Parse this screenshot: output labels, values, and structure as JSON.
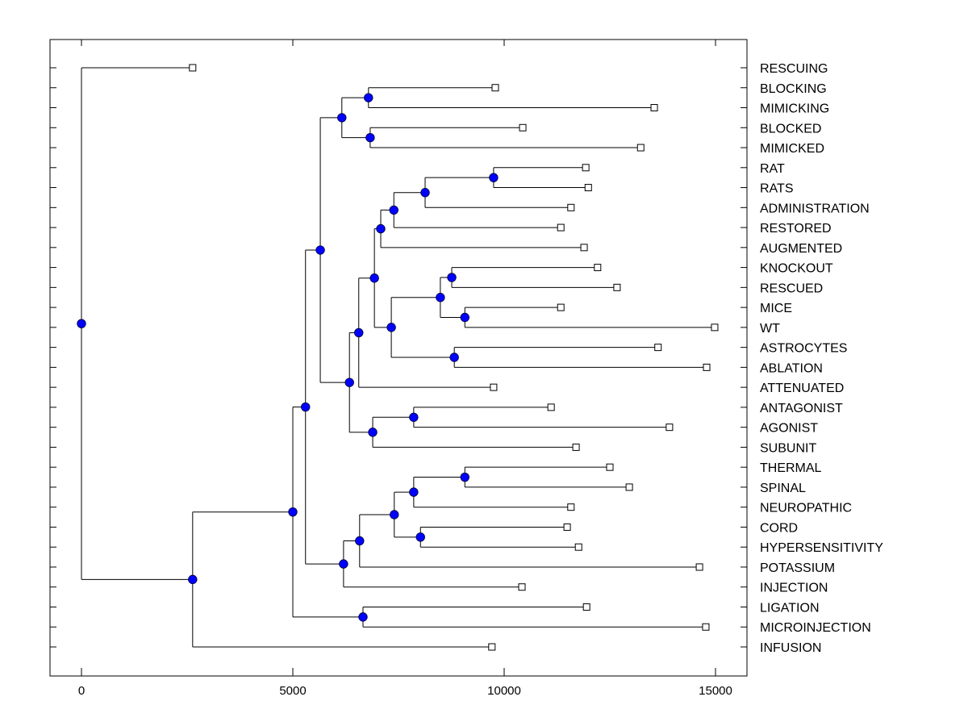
{
  "chart_data": {
    "type": "dendrogram",
    "title": "",
    "xlabel": "",
    "ylabel": "",
    "xlim": [
      -1500,
      15800
    ],
    "xticks": [
      0,
      5000,
      10000,
      15000
    ],
    "xtick_labels": [
      "0",
      "5000",
      "10000",
      "15000"
    ],
    "grid": false,
    "orientation": "left-to-right",
    "leaf_marker": "open-square",
    "node_marker": "filled-circle",
    "node_color": "#0000ff",
    "line_color": "#000000",
    "leaves": [
      {
        "label": "RESCUING",
        "x": 2630
      },
      {
        "label": "BLOCKING",
        "x": 9790
      },
      {
        "label": "MIMICKING",
        "x": 13550
      },
      {
        "label": "BLOCKED",
        "x": 10440
      },
      {
        "label": "MIMICKED",
        "x": 13230
      },
      {
        "label": "RAT",
        "x": 11930
      },
      {
        "label": "RATS",
        "x": 11990
      },
      {
        "label": "ADMINISTRATION",
        "x": 11580
      },
      {
        "label": "RESTORED",
        "x": 11340
      },
      {
        "label": "AUGMENTED",
        "x": 11890
      },
      {
        "label": "KNOCKOUT",
        "x": 12210
      },
      {
        "label": "RESCUED",
        "x": 12670
      },
      {
        "label": "MICE",
        "x": 11340
      },
      {
        "label": "WT",
        "x": 14980
      },
      {
        "label": "ASTROCYTES",
        "x": 13640
      },
      {
        "label": "ABLATION",
        "x": 14790
      },
      {
        "label": "ATTENUATED",
        "x": 9750
      },
      {
        "label": "ANTAGONIST",
        "x": 11110
      },
      {
        "label": "AGONIST",
        "x": 13910
      },
      {
        "label": "SUBUNIT",
        "x": 11700
      },
      {
        "label": "THERMAL",
        "x": 12500
      },
      {
        "label": "SPINAL",
        "x": 12960
      },
      {
        "label": "NEUROPATHIC",
        "x": 11580
      },
      {
        "label": "CORD",
        "x": 11490
      },
      {
        "label": "HYPERSENSITIVITY",
        "x": 11760
      },
      {
        "label": "POTASSIUM",
        "x": 14620
      },
      {
        "label": "INJECTION",
        "x": 10420
      },
      {
        "label": "LIGATION",
        "x": 11950
      },
      {
        "label": "MICROINJECTION",
        "x": 14770
      },
      {
        "label": "INFUSION",
        "x": 9710
      }
    ],
    "tree": {
      "x": 0,
      "children": [
        {
          "leaf": 0
        },
        {
          "x": 2630,
          "children": [
            {
              "x": 5000,
              "children": [
                {
                  "x": 5300,
                  "children": [
                    {
                      "x": 5650,
                      "children": [
                        {
                          "x": 6160,
                          "children": [
                            {
                              "x": 6790,
                              "children": [
                                {
                                  "leaf": 1
                                },
                                {
                                  "leaf": 2
                                }
                              ]
                            },
                            {
                              "x": 6830,
                              "children": [
                                {
                                  "leaf": 3
                                },
                                {
                                  "leaf": 4
                                }
                              ]
                            }
                          ]
                        },
                        {
                          "x": 6340,
                          "children": [
                            {
                              "x": 6560,
                              "children": [
                                {
                                  "x": 6930,
                                  "children": [
                                    {
                                      "x": 7080,
                                      "children": [
                                        {
                                          "x": 7390,
                                          "children": [
                                            {
                                              "x": 8130,
                                              "children": [
                                                {
                                                  "x": 9750,
                                                  "children": [
                                                    {
                                                      "leaf": 5
                                                    },
                                                    {
                                                      "leaf": 6
                                                    }
                                                  ]
                                                },
                                                {
                                                  "leaf": 7
                                                }
                                              ]
                                            },
                                            {
                                              "leaf": 8
                                            }
                                          ]
                                        },
                                        {
                                          "leaf": 9
                                        }
                                      ]
                                    },
                                    {
                                      "x": 7330,
                                      "children": [
                                        {
                                          "x": 8490,
                                          "children": [
                                            {
                                              "x": 8760,
                                              "children": [
                                                {
                                                  "leaf": 10
                                                },
                                                {
                                                  "leaf": 11
                                                }
                                              ]
                                            },
                                            {
                                              "x": 9070,
                                              "children": [
                                                {
                                                  "leaf": 12
                                                },
                                                {
                                                  "leaf": 13
                                                }
                                              ]
                                            }
                                          ]
                                        },
                                        {
                                          "x": 8820,
                                          "children": [
                                            {
                                              "leaf": 14
                                            },
                                            {
                                              "leaf": 15
                                            }
                                          ]
                                        }
                                      ]
                                    }
                                  ]
                                },
                                {
                                  "leaf": 16
                                }
                              ]
                            },
                            {
                              "x": 6890,
                              "children": [
                                {
                                  "x": 7860,
                                  "children": [
                                    {
                                      "leaf": 17
                                    },
                                    {
                                      "leaf": 18
                                    }
                                  ]
                                },
                                {
                                  "leaf": 19
                                }
                              ]
                            }
                          ]
                        }
                      ]
                    },
                    {
                      "x": 6200,
                      "children": [
                        {
                          "x": 6580,
                          "children": [
                            {
                              "x": 7400,
                              "children": [
                                {
                                  "x": 7860,
                                  "children": [
                                    {
                                      "x": 9070,
                                      "children": [
                                        {
                                          "leaf": 20
                                        },
                                        {
                                          "leaf": 21
                                        }
                                      ]
                                    },
                                    {
                                      "leaf": 22
                                    }
                                  ]
                                },
                                {
                                  "x": 8020,
                                  "children": [
                                    {
                                      "leaf": 23
                                    },
                                    {
                                      "leaf": 24
                                    }
                                  ]
                                }
                              ]
                            },
                            {
                              "leaf": 25
                            }
                          ]
                        },
                        {
                          "leaf": 26
                        }
                      ]
                    }
                  ]
                },
                {
                  "x": 6660,
                  "children": [
                    {
                      "leaf": 27
                    },
                    {
                      "leaf": 28
                    }
                  ]
                }
              ]
            },
            {
              "leaf": 29
            }
          ]
        }
      ]
    }
  }
}
